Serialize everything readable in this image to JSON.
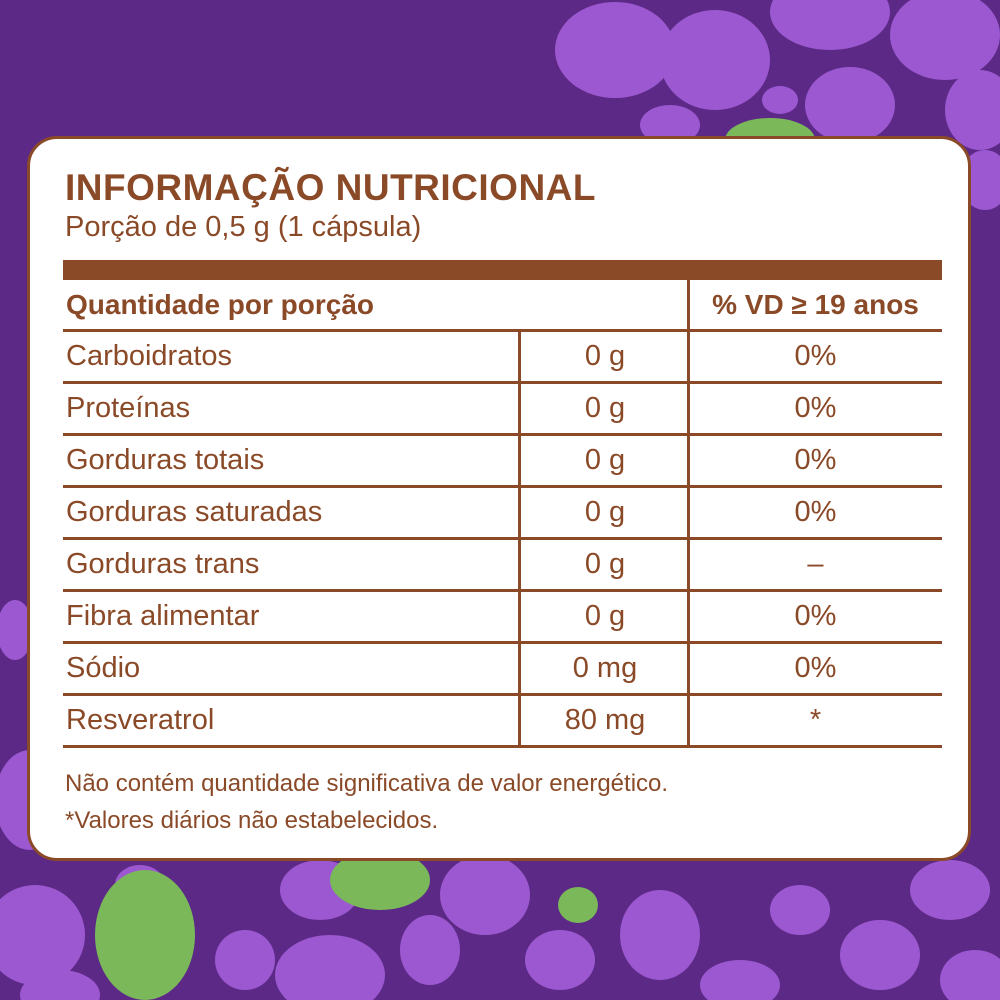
{
  "colors": {
    "background": "#5c2a86",
    "bubble": "#9c58d0",
    "leaf": "#7ab85a",
    "text": "#8a4a28",
    "panel": "#ffffff"
  },
  "label": {
    "title": "INFORMAÇÃO NUTRICIONAL",
    "portion": "Porção de 0,5 g (1 cápsula)",
    "header": {
      "quantity": "Quantidade por porção",
      "vd": "% VD ≥ 19 anos"
    },
    "rows": [
      {
        "name": "Carboidratos",
        "amount": "0 g",
        "vd": "0%"
      },
      {
        "name": "Proteínas",
        "amount": "0 g",
        "vd": "0%"
      },
      {
        "name": "Gorduras totais",
        "amount": "0 g",
        "vd": "0%"
      },
      {
        "name": "Gorduras saturadas",
        "amount": "0 g",
        "vd": "0%"
      },
      {
        "name": "Gorduras trans",
        "amount": "0 g",
        "vd": "–"
      },
      {
        "name": "Fibra alimentar",
        "amount": "0 g",
        "vd": "0%"
      },
      {
        "name": "Sódio",
        "amount": "0 mg",
        "vd": "0%"
      },
      {
        "name": "Resveratrol",
        "amount": "80 mg",
        "vd": "*"
      }
    ],
    "notes": [
      "Não contém quantidade significativa de valor energético.",
      "*Valores diários não estabelecidos."
    ]
  }
}
